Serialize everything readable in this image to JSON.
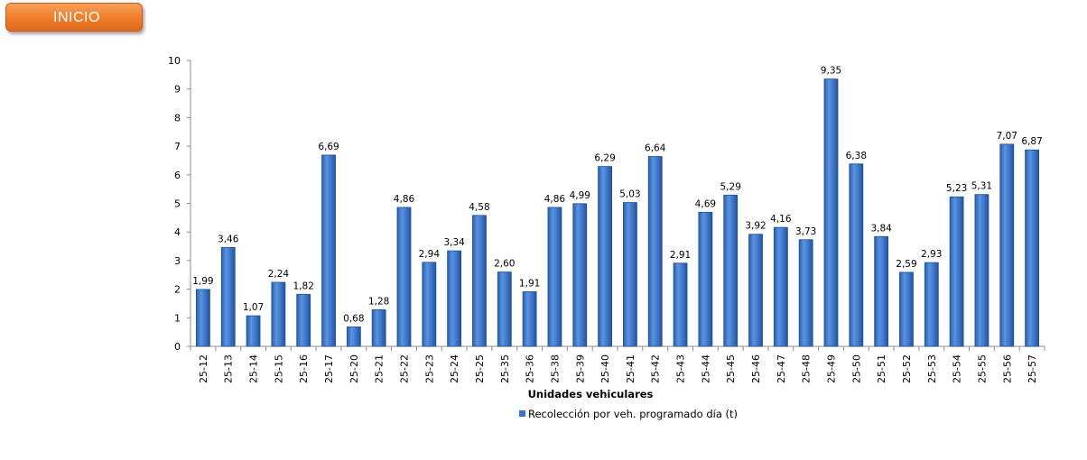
{
  "header": {
    "inicio_label": "INICIO",
    "inicio_color": "#ef7f2c"
  },
  "chart_data": {
    "type": "bar",
    "title": "",
    "xlabel": "Unidades vehiculares",
    "ylabel": "",
    "ylim": [
      0,
      10
    ],
    "yticks": [
      "0",
      "1",
      "2",
      "3",
      "4",
      "5",
      "6",
      "7",
      "8",
      "9",
      "10"
    ],
    "grid": false,
    "legend_position": "bottom",
    "bar_color": "#3b74c7",
    "categories": [
      "25-12",
      "25-13",
      "25-14",
      "25-15",
      "25-16",
      "25-17",
      "25-20",
      "25-21",
      "25-22",
      "25-23",
      "25-24",
      "25-25",
      "25-35",
      "25-36",
      "25-38",
      "25-39",
      "25-40",
      "25-41",
      "25-42",
      "25-43",
      "25-44",
      "25-45",
      "25-46",
      "25-47",
      "25-48",
      "25-49",
      "25-50",
      "25-51",
      "25-52",
      "25-53",
      "25-54",
      "25-55",
      "25-56",
      "25-57"
    ],
    "series": [
      {
        "name": "Recolección por veh. programado día (t)",
        "values": [
          1.99,
          3.46,
          1.07,
          2.24,
          1.82,
          6.69,
          0.68,
          1.28,
          4.86,
          2.94,
          3.34,
          4.58,
          2.6,
          1.91,
          4.86,
          4.99,
          6.29,
          5.03,
          6.64,
          2.91,
          4.69,
          5.29,
          3.92,
          4.16,
          3.73,
          9.35,
          6.38,
          3.84,
          2.59,
          2.93,
          5.23,
          5.31,
          7.07,
          6.87
        ],
        "labels": [
          "1,99",
          "3,46",
          "1,07",
          "2,24",
          "1,82",
          "6,69",
          "0,68",
          "1,28",
          "4,86",
          "2,94",
          "3,34",
          "4,58",
          "2,60",
          "1,91",
          "4,86",
          "4,99",
          "6,29",
          "5,03",
          "6,64",
          "2,91",
          "4,69",
          "5,29",
          "3,92",
          "4,16",
          "3,73",
          "9,35",
          "6,38",
          "3,84",
          "2,59",
          "2,93",
          "5,23",
          "5,31",
          "7,07",
          "6,87"
        ]
      }
    ]
  }
}
